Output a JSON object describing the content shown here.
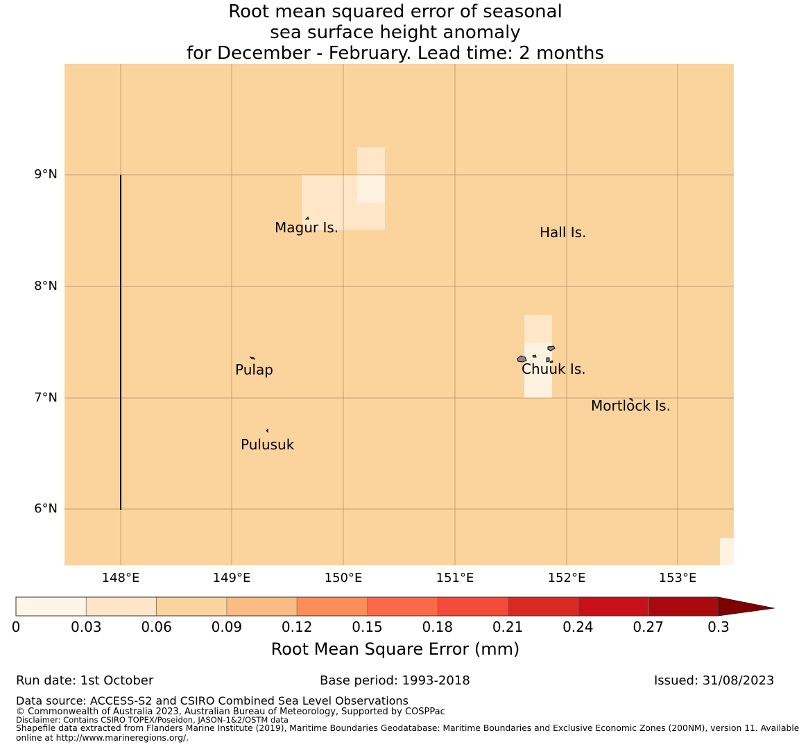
{
  "title_lines": [
    "Root mean squared error of seasonal",
    "sea surface height anomaly",
    "for December - February. Lead time: 2 months"
  ],
  "map": {
    "background_color": "#fbd39d",
    "grid_color": "#8b6a45",
    "lat_labels": [
      "9°N",
      "8°N",
      "7°N",
      "6°N"
    ],
    "lon_labels": [
      "148°E",
      "149°E",
      "150°E",
      "151°E",
      "152°E",
      "153°E"
    ],
    "places": [
      {
        "name": "Magur Is."
      },
      {
        "name": "Hall Is."
      },
      {
        "name": "Pulap"
      },
      {
        "name": "Chuuk Is."
      },
      {
        "name": "Mortlock Is."
      },
      {
        "name": "Pulusuk"
      }
    ],
    "light_cell_colors": [
      "#fee6c7",
      "#fff2e0"
    ]
  },
  "colorbar": {
    "title": "Root Mean Square Error (mm)",
    "ticks": [
      "0",
      "0.03",
      "0.06",
      "0.09",
      "0.12",
      "0.15",
      "0.18",
      "0.21",
      "0.24",
      "0.27",
      "0.3"
    ],
    "colors": [
      "#fff5e6",
      "#fee6c7",
      "#fbd39d",
      "#fbbb84",
      "#fb8d59",
      "#fa6a4a",
      "#f34a3a",
      "#d72a22",
      "#c7101a",
      "#a80a0f"
    ],
    "extend_color": "#7f0000"
  },
  "footer": {
    "run_date": "Run date: 1st October",
    "base_period": "Base period: 1993-2018",
    "issued": "Issued: 31/08/2023",
    "data_source": "Data source: ACCESS-S2 and CSIRO Combined Sea Level Observations",
    "copyright": "© Commonwealth of Australia 2023, Australian Bureau of Meteorology, Supported by COSPPac",
    "disclaimer": "Disclaimer: Contains CSIRO TOPEX/Poseidon, JASON-1&2/OSTM data",
    "shapefile_line1": "Shapefile data extracted from Flanders Marine Institute (2019), Maritime Boundaries Geodatabase: Maritime Boundaries and Exclusive Economic Zones (200NM), version 11. Available",
    "shapefile_line2": "online at http://www.marineregions.org/."
  }
}
